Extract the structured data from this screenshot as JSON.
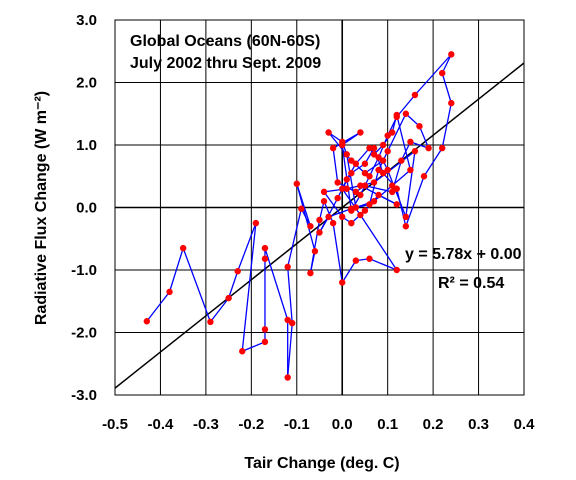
{
  "chart_data": {
    "type": "scatter",
    "title_lines": [
      "Global Oceans (60N-60S)",
      "July 2002 thru Sept. 2009"
    ],
    "xlabel": "Tair Change (deg. C)",
    "ylabel": "Radiative Flux Change (W m⁻²)",
    "xlim": [
      -0.5,
      0.4
    ],
    "ylim": [
      -3.0,
      3.0
    ],
    "x_ticks": [
      "-0.5",
      "-0.4",
      "-0.3",
      "-0.2",
      "-0.1",
      "0.0",
      "0.1",
      "0.2",
      "0.3",
      "0.4"
    ],
    "y_ticks": [
      "3.0",
      "2.0",
      "1.0",
      "0.0",
      "-1.0",
      "-2.0",
      "-3.0"
    ],
    "grid": true,
    "equation": "y = 5.78x + 0.00",
    "r_squared": "R² = 0.54",
    "regression": {
      "slope": 5.78,
      "intercept": 0.0
    },
    "colors": {
      "points": "#ff0000",
      "connect": "#0000ff",
      "fit": "#000000",
      "grid": "#000000"
    },
    "series": [
      {
        "connected": true,
        "points": [
          [
            -0.43,
            -1.82
          ],
          [
            -0.38,
            -1.35
          ],
          [
            -0.35,
            -0.65
          ],
          [
            -0.29,
            -1.83
          ],
          [
            -0.25,
            -1.45
          ],
          [
            -0.23,
            -1.02
          ],
          [
            -0.19,
            -0.25
          ],
          [
            -0.22,
            -2.3
          ],
          [
            -0.17,
            -2.15
          ],
          [
            -0.17,
            -1.95
          ],
          [
            -0.17,
            -0.82
          ],
          [
            -0.17,
            -0.65
          ],
          [
            -0.12,
            -1.8
          ],
          [
            -0.12,
            -2.72
          ],
          [
            -0.11,
            -1.85
          ],
          [
            -0.12,
            -0.95
          ],
          [
            -0.09,
            -0.02
          ],
          [
            -0.07,
            -0.3
          ],
          [
            -0.1,
            0.38
          ],
          [
            -0.06,
            -0.7
          ],
          [
            -0.07,
            -1.05
          ],
          [
            -0.05,
            -0.2
          ],
          [
            -0.04,
            0.1
          ],
          [
            -0.02,
            -0.25
          ],
          [
            0.0,
            -1.2
          ],
          [
            0.03,
            -0.85
          ],
          [
            0.06,
            -0.82
          ],
          [
            0.12,
            -1.0
          ],
          [
            0.04,
            -0.12
          ],
          [
            0.0,
            0.3
          ],
          [
            0.02,
            0.55
          ],
          [
            0.05,
            0.7
          ],
          [
            0.07,
            0.95
          ],
          [
            0.09,
            0.55
          ],
          [
            0.12,
            0.3
          ],
          [
            0.14,
            -0.3
          ],
          [
            0.18,
            0.5
          ],
          [
            0.22,
            0.95
          ],
          [
            0.24,
            1.67
          ],
          [
            0.22,
            2.15
          ],
          [
            0.24,
            2.45
          ],
          [
            0.16,
            1.8
          ],
          [
            0.12,
            1.45
          ],
          [
            0.1,
            1.15
          ],
          [
            0.08,
            0.8
          ],
          [
            0.06,
            0.5
          ],
          [
            0.04,
            0.2
          ],
          [
            0.02,
            -0.05
          ],
          [
            0.0,
            1.0
          ],
          [
            0.04,
            1.2
          ],
          [
            -0.02,
            0.95
          ],
          [
            -0.01,
            0.4
          ],
          [
            0.03,
            0.25
          ],
          [
            0.05,
            0.35
          ],
          [
            0.11,
            0.25
          ],
          [
            0.13,
            0.75
          ],
          [
            0.15,
            1.05
          ],
          [
            0.19,
            0.95
          ],
          [
            0.17,
            1.3
          ],
          [
            0.14,
            1.5
          ],
          [
            0.1,
            0.9
          ],
          [
            0.08,
            0.6
          ],
          [
            0.06,
            0.05
          ],
          [
            0.02,
            -0.02
          ],
          [
            -0.03,
            -0.15
          ],
          [
            -0.05,
            -0.4
          ],
          [
            -0.01,
            0.15
          ],
          [
            0.01,
            0.45
          ],
          [
            0.03,
            0.7
          ],
          [
            0.06,
            0.95
          ],
          [
            0.07,
            0.85
          ],
          [
            0.09,
            1.0
          ],
          [
            0.11,
            1.2
          ],
          [
            0.12,
            1.48
          ],
          [
            0.15,
            0.6
          ],
          [
            0.11,
            0.35
          ],
          [
            0.07,
            0.1
          ],
          [
            0.03,
            0.0
          ],
          [
            0.01,
            0.85
          ],
          [
            0.0,
            1.05
          ],
          [
            -0.03,
            1.2
          ],
          [
            0.02,
            0.75
          ],
          [
            0.05,
            0.55
          ],
          [
            0.09,
            0.75
          ],
          [
            0.1,
            0.6
          ],
          [
            0.14,
            -0.15
          ],
          [
            0.16,
            0.9
          ],
          [
            0.07,
            0.4
          ],
          [
            0.01,
            0.3
          ],
          [
            -0.04,
            0.25
          ],
          [
            0.0,
            -0.15
          ],
          [
            0.02,
            -0.25
          ],
          [
            0.05,
            -0.05
          ],
          [
            0.08,
            0.2
          ],
          [
            0.12,
            0.05
          ],
          [
            0.04,
            0.35
          ]
        ]
      }
    ]
  }
}
